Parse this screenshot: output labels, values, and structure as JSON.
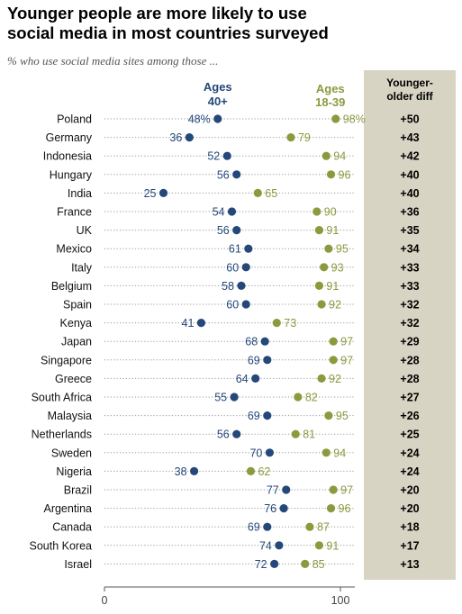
{
  "chart_data": {
    "type": "scatter",
    "title": "Younger people are more likely to use social media in most countries surveyed",
    "subtitle": "% who use social media sites among those ...",
    "xlim": [
      0,
      100
    ],
    "x_ticks": [
      "0",
      "100"
    ],
    "grid": "dotted row guides",
    "series": [
      {
        "name": "Ages 40+",
        "color": "#24487a"
      },
      {
        "name": "Ages 18-39",
        "color": "#8a9a3c"
      }
    ],
    "diff_header": "Younger-older diff",
    "diff_bg": "#d8d4c4",
    "rows": [
      {
        "country": "Poland",
        "older": 48,
        "younger": 98,
        "older_label": "48%",
        "younger_label": "98%",
        "diff": "+50"
      },
      {
        "country": "Germany",
        "older": 36,
        "younger": 79,
        "older_label": "36",
        "younger_label": "79",
        "diff": "+43"
      },
      {
        "country": "Indonesia",
        "older": 52,
        "younger": 94,
        "older_label": "52",
        "younger_label": "94",
        "diff": "+42"
      },
      {
        "country": "Hungary",
        "older": 56,
        "younger": 96,
        "older_label": "56",
        "younger_label": "96",
        "diff": "+40"
      },
      {
        "country": "India",
        "older": 25,
        "younger": 65,
        "older_label": "25",
        "younger_label": "65",
        "diff": "+40"
      },
      {
        "country": "France",
        "older": 54,
        "younger": 90,
        "older_label": "54",
        "younger_label": "90",
        "diff": "+36"
      },
      {
        "country": "UK",
        "older": 56,
        "younger": 91,
        "older_label": "56",
        "younger_label": "91",
        "diff": "+35"
      },
      {
        "country": "Mexico",
        "older": 61,
        "younger": 95,
        "older_label": "61",
        "younger_label": "95",
        "diff": "+34"
      },
      {
        "country": "Italy",
        "older": 60,
        "younger": 93,
        "older_label": "60",
        "younger_label": "93",
        "diff": "+33"
      },
      {
        "country": "Belgium",
        "older": 58,
        "younger": 91,
        "older_label": "58",
        "younger_label": "91",
        "diff": "+33"
      },
      {
        "country": "Spain",
        "older": 60,
        "younger": 92,
        "older_label": "60",
        "younger_label": "92",
        "diff": "+32"
      },
      {
        "country": "Kenya",
        "older": 41,
        "younger": 73,
        "older_label": "41",
        "younger_label": "73",
        "diff": "+32"
      },
      {
        "country": "Japan",
        "older": 68,
        "younger": 97,
        "older_label": "68",
        "younger_label": "97",
        "diff": "+29"
      },
      {
        "country": "Singapore",
        "older": 69,
        "younger": 97,
        "older_label": "69",
        "younger_label": "97",
        "diff": "+28"
      },
      {
        "country": "Greece",
        "older": 64,
        "younger": 92,
        "older_label": "64",
        "younger_label": "92",
        "diff": "+28"
      },
      {
        "country": "South Africa",
        "older": 55,
        "younger": 82,
        "older_label": "55",
        "younger_label": "82",
        "diff": "+27"
      },
      {
        "country": "Malaysia",
        "older": 69,
        "younger": 95,
        "older_label": "69",
        "younger_label": "95",
        "diff": "+26"
      },
      {
        "country": "Netherlands",
        "older": 56,
        "younger": 81,
        "older_label": "56",
        "younger_label": "81",
        "diff": "+25"
      },
      {
        "country": "Sweden",
        "older": 70,
        "younger": 94,
        "older_label": "70",
        "younger_label": "94",
        "diff": "+24"
      },
      {
        "country": "Nigeria",
        "older": 38,
        "younger": 62,
        "older_label": "38",
        "younger_label": "62",
        "diff": "+24"
      },
      {
        "country": "Brazil",
        "older": 77,
        "younger": 97,
        "older_label": "77",
        "younger_label": "97",
        "diff": "+20"
      },
      {
        "country": "Argentina",
        "older": 76,
        "younger": 96,
        "older_label": "76",
        "younger_label": "96",
        "diff": "+20"
      },
      {
        "country": "Canada",
        "older": 69,
        "younger": 87,
        "older_label": "69",
        "younger_label": "87",
        "diff": "+18"
      },
      {
        "country": "South Korea",
        "older": 74,
        "younger": 91,
        "older_label": "74",
        "younger_label": "91",
        "diff": "+17"
      },
      {
        "country": "Israel",
        "older": 72,
        "younger": 85,
        "older_label": "72",
        "younger_label": "85",
        "diff": "+13"
      }
    ]
  }
}
